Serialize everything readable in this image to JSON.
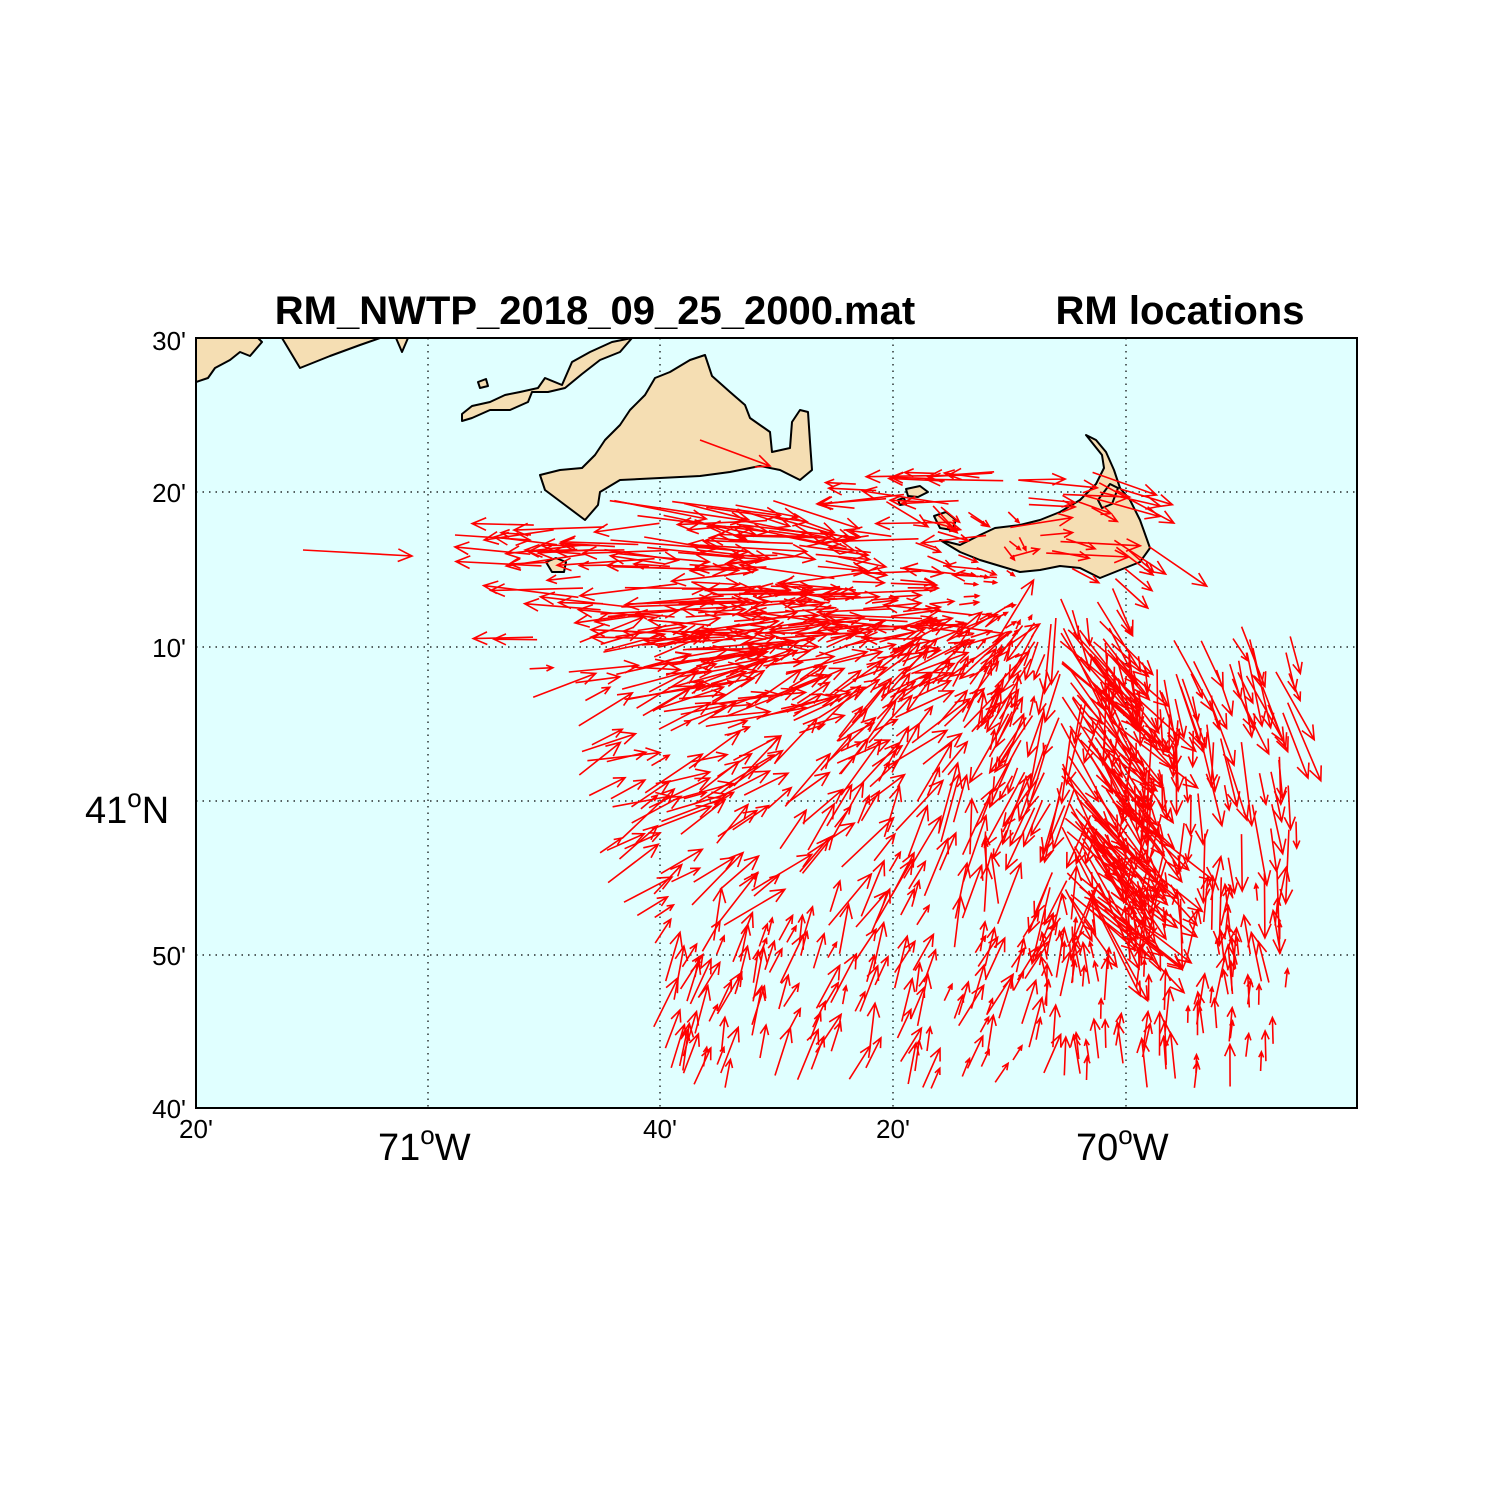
{
  "map": {
    "title_left": "RM_NWTP_2018_09_25_2000.mat",
    "title_right": "RM locations",
    "extent": {
      "lon_min": -71.333,
      "lon_max": -69.833,
      "lat_min": 40.667,
      "lat_max": 41.5
    },
    "colors": {
      "ocean": "#e0ffff",
      "land": "#f5deb3",
      "vectors": "#ff0000",
      "coast": "#000000"
    },
    "lat_ticks": [
      {
        "lat": 41.5,
        "label": "30'"
      },
      {
        "lat": 41.3333,
        "label": "20'"
      },
      {
        "lat": 41.1667,
        "label": "10'"
      },
      {
        "lat": 41.0,
        "label": "41",
        "sup": "o",
        "suffix": "N"
      },
      {
        "lat": 40.8333,
        "label": "50'"
      },
      {
        "lat": 40.6667,
        "label": "40'"
      }
    ],
    "lon_ticks": [
      {
        "lon": -71.3333,
        "label": "20'"
      },
      {
        "lon": -71.0,
        "label": "71",
        "sup": "o",
        "suffix": "W"
      },
      {
        "lon": -70.6667,
        "label": "40'"
      },
      {
        "lon": -70.3333,
        "label": "20'"
      },
      {
        "lon": -70.0,
        "label": "70",
        "sup": "o",
        "suffix": "W"
      }
    ],
    "vector_field": {
      "description_of_source": "HF radar surface current vectors",
      "convergence_lon": -70.15,
      "convergence_lat": 41.17
    }
  }
}
